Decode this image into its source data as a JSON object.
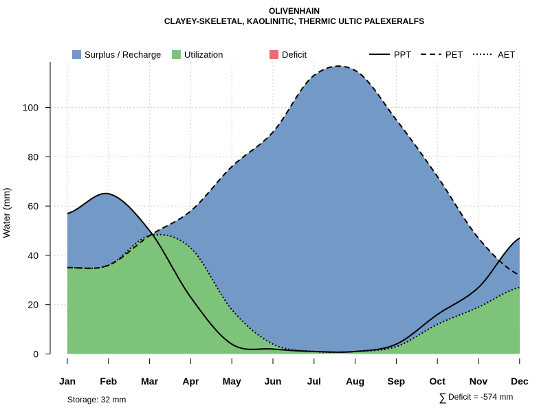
{
  "chart_data": {
    "type": "area",
    "title": "OLIVENHAIN",
    "subtitle": "CLAYEY-SKELETAL, KAOLINITIC, THERMIC ULTIC PALEXERALFS",
    "xlabel": "",
    "ylabel": "Water (mm)",
    "ylim": [
      0,
      118
    ],
    "yticks": [
      0,
      20,
      40,
      60,
      80,
      100
    ],
    "categories": [
      "Jan",
      "Feb",
      "Mar",
      "Apr",
      "May",
      "Jun",
      "Jul",
      "Aug",
      "Sep",
      "Oct",
      "Nov",
      "Dec"
    ],
    "grid": true,
    "series": [
      {
        "name": "PPT",
        "style": "solid",
        "values": [
          57,
          65,
          50,
          23,
          4,
          2,
          1,
          1,
          4,
          16,
          27,
          47
        ]
      },
      {
        "name": "PET",
        "style": "dashed",
        "values": [
          35,
          36,
          48,
          58,
          76,
          90,
          113,
          115,
          95,
          72,
          47,
          32
        ]
      },
      {
        "name": "AET",
        "style": "dotted",
        "values": [
          35,
          36,
          48,
          43,
          18,
          4,
          1,
          1,
          3,
          12,
          19,
          27
        ]
      }
    ],
    "fills": [
      {
        "name": "Surplus / Recharge",
        "color": "#7399c6"
      },
      {
        "name": "Utilization",
        "color": "#7dc47a"
      },
      {
        "name": "Deficit",
        "color": "#eb6d6d"
      }
    ],
    "legend": {
      "position": "top",
      "items": [
        {
          "label": "Surplus / Recharge",
          "kind": "fill",
          "color": "#7399c6"
        },
        {
          "label": "Utilization",
          "kind": "fill",
          "color": "#7dc47a"
        },
        {
          "label": "Deficit",
          "kind": "fill",
          "color": "#eb6d6d"
        },
        {
          "label": "PPT",
          "kind": "line",
          "style": "solid"
        },
        {
          "label": "PET",
          "kind": "line",
          "style": "dashed"
        },
        {
          "label": "AET",
          "kind": "line",
          "style": "dotted"
        }
      ]
    },
    "annotations": {
      "storage": "Storage: 32 mm",
      "deficit_symbol": "∑",
      "deficit": "Deficit = -574 mm"
    }
  }
}
